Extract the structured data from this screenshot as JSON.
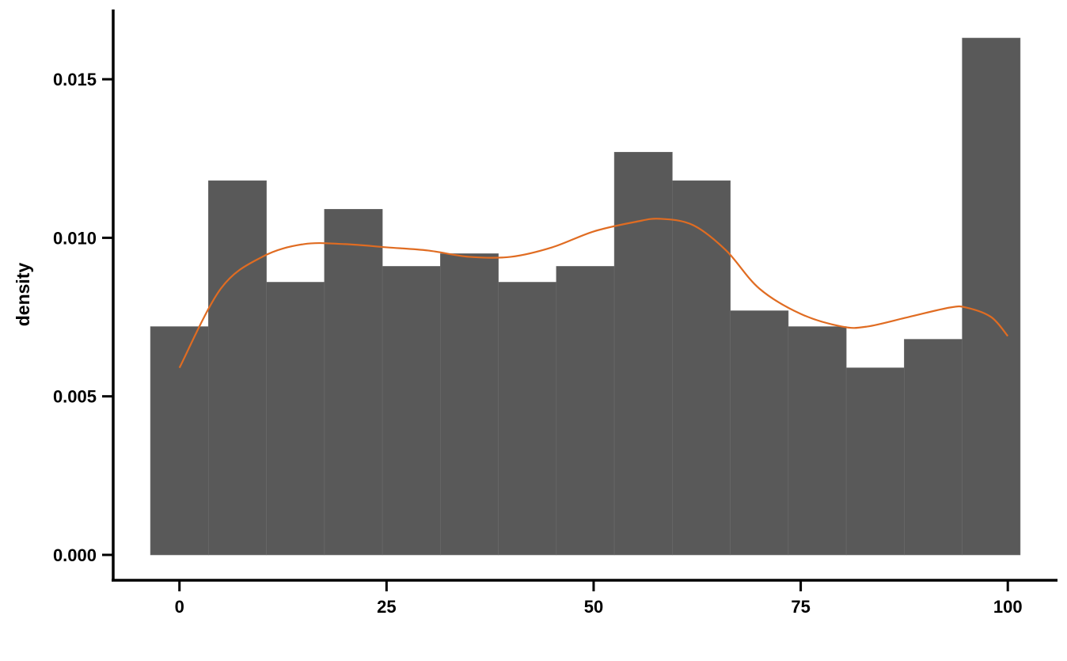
{
  "chart_data": {
    "type": "bar",
    "subtype": "histogram-with-density-curve",
    "title": "",
    "xlabel": "",
    "ylabel": "density",
    "xlim": [
      -8,
      106
    ],
    "ylim": [
      -0.0008,
      0.0172
    ],
    "x_ticks": [
      {
        "value": 0,
        "label": "0"
      },
      {
        "value": 25,
        "label": "25"
      },
      {
        "value": 50,
        "label": "50"
      },
      {
        "value": 75,
        "label": "75"
      },
      {
        "value": 100,
        "label": "100"
      }
    ],
    "y_ticks": [
      {
        "value": 0.0,
        "label": "0.000"
      },
      {
        "value": 0.005,
        "label": "0.005"
      },
      {
        "value": 0.01,
        "label": "0.010"
      },
      {
        "value": 0.015,
        "label": "0.015"
      }
    ],
    "bins": [
      {
        "x0": -3.5,
        "x1": 3.5,
        "density": 0.0072
      },
      {
        "x0": 3.5,
        "x1": 10.5,
        "density": 0.0118
      },
      {
        "x0": 10.5,
        "x1": 17.5,
        "density": 0.0086
      },
      {
        "x0": 17.5,
        "x1": 24.5,
        "density": 0.0109
      },
      {
        "x0": 24.5,
        "x1": 31.5,
        "density": 0.0091
      },
      {
        "x0": 31.5,
        "x1": 38.5,
        "density": 0.0095
      },
      {
        "x0": 38.5,
        "x1": 45.5,
        "density": 0.0086
      },
      {
        "x0": 45.5,
        "x1": 52.5,
        "density": 0.0091
      },
      {
        "x0": 52.5,
        "x1": 59.5,
        "density": 0.0127
      },
      {
        "x0": 59.5,
        "x1": 66.5,
        "density": 0.0118
      },
      {
        "x0": 66.5,
        "x1": 73.5,
        "density": 0.0077
      },
      {
        "x0": 73.5,
        "x1": 80.5,
        "density": 0.0072
      },
      {
        "x0": 80.5,
        "x1": 87.5,
        "density": 0.0059
      },
      {
        "x0": 87.5,
        "x1": 94.5,
        "density": 0.0068
      },
      {
        "x0": 94.5,
        "x1": 101.5,
        "density": 0.0163
      }
    ],
    "density_curve": {
      "x": [
        0,
        5,
        10,
        15,
        20,
        25,
        30,
        35,
        40,
        45,
        50,
        55,
        58,
        62,
        66,
        70,
        75,
        80,
        83,
        88,
        93,
        95,
        98,
        100
      ],
      "y": [
        0.0059,
        0.0084,
        0.0094,
        0.0098,
        0.0098,
        0.0097,
        0.0096,
        0.0094,
        0.0094,
        0.0097,
        0.0102,
        0.0105,
        0.0106,
        0.0104,
        0.0096,
        0.0084,
        0.0076,
        0.0072,
        0.0072,
        0.0075,
        0.0078,
        0.0078,
        0.0075,
        0.0069
      ]
    },
    "grid": false,
    "colors": {
      "bars": "#595959",
      "bar_edges": "#6b6b6b",
      "curve": "#e06c22",
      "axes": "#000000"
    }
  }
}
